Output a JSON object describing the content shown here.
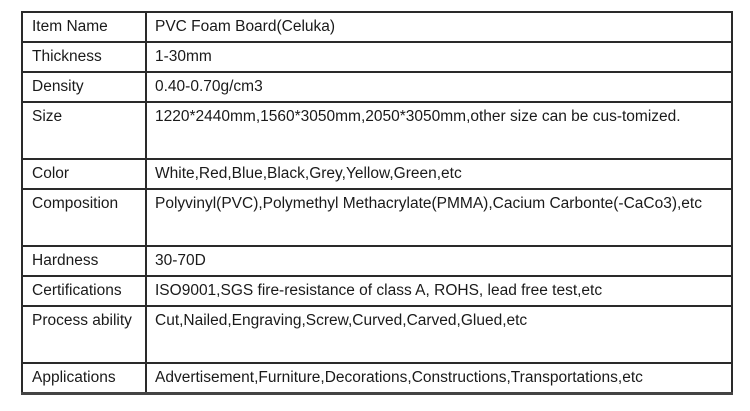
{
  "rows": [
    {
      "label": "Item Name",
      "value": "PVC Foam Board(Celuka)"
    },
    {
      "label": "Thickness",
      "value": "1-30mm"
    },
    {
      "label": "Density",
      "value": "0.40-0.70g/cm3"
    },
    {
      "label": "Size",
      "value": "1220*2440mm,1560*3050mm,2050*3050mm,other size can be cus-tomized."
    },
    {
      "label": "Color",
      "value": "White,Red,Blue,Black,Grey,Yellow,Green,etc"
    },
    {
      "label": "Composition",
      "value": "Polyvinyl(PVC),Polymethyl Methacrylate(PMMA),Cacium Carbonte(-CaCo3),etc"
    },
    {
      "label": "Hardness",
      "value": "30-70D"
    },
    {
      "label": "Certifications",
      "value": "ISO9001,SGS fire-resistance of class A, ROHS, lead free test,etc"
    },
    {
      "label": "Process ability",
      "value": "Cut,Nailed,Engraving,Screw,Curved,Carved,Glued,etc"
    },
    {
      "label": "Applications",
      "value": "Advertisement,Furniture,Decorations,Constructions,Transportations,etc"
    }
  ]
}
